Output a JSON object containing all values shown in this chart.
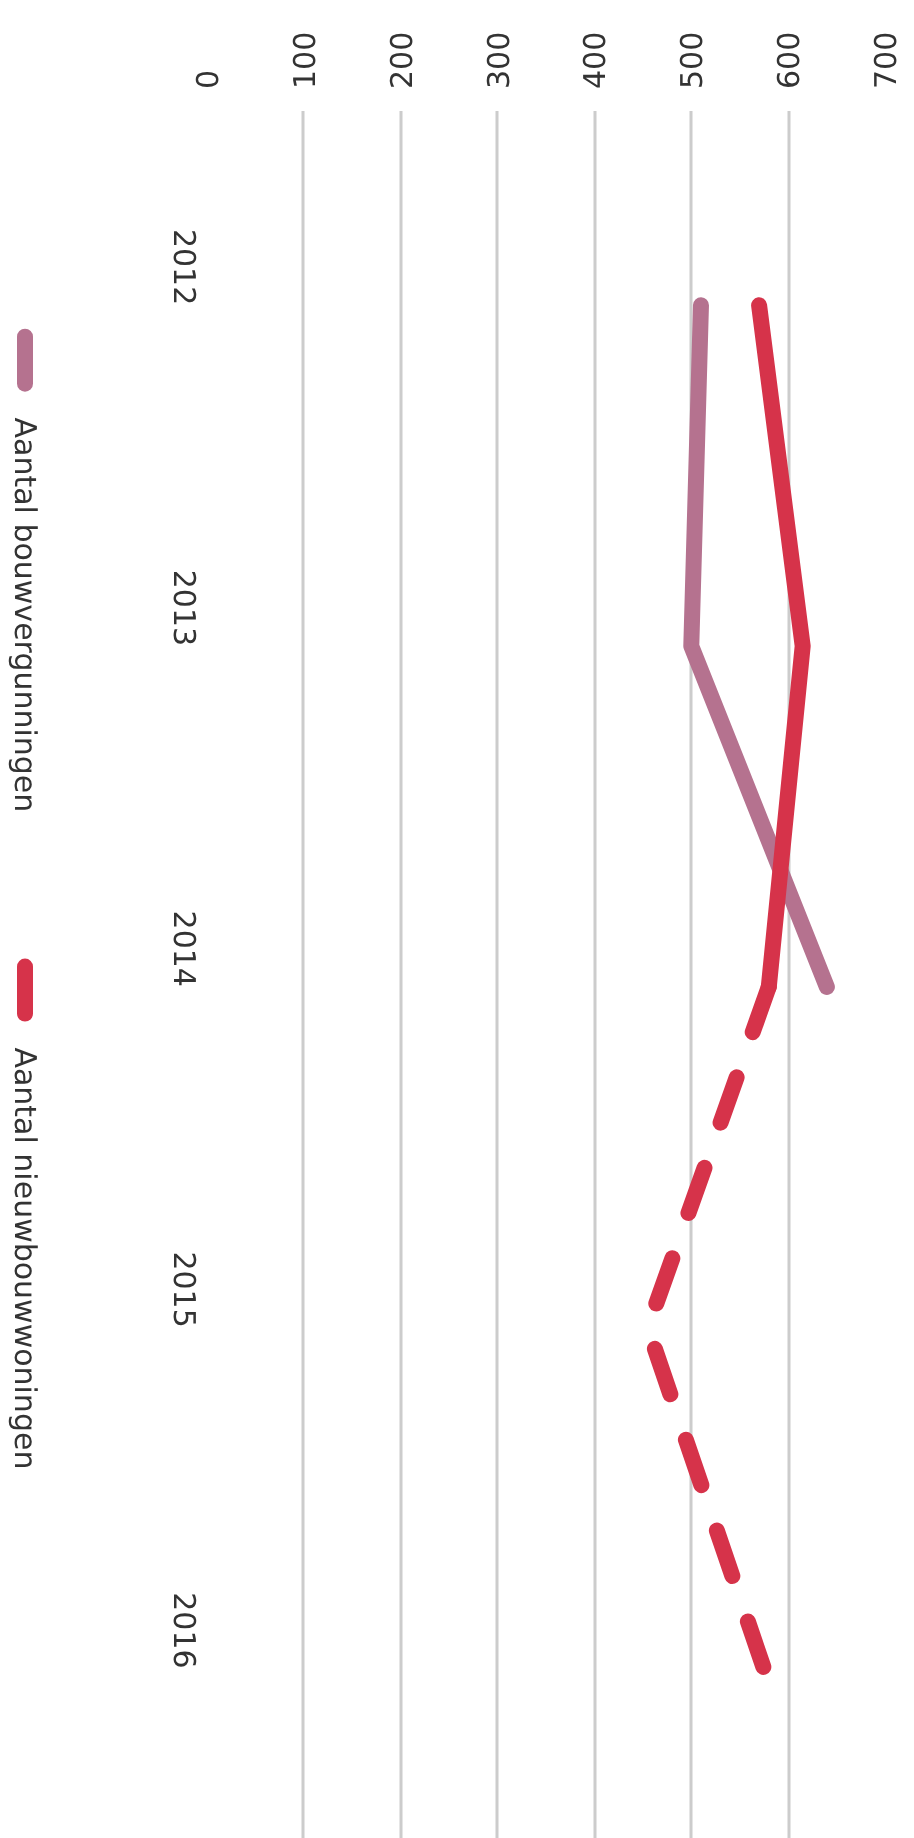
{
  "chart_data": {
    "type": "line",
    "orientation": "horizontal",
    "categories": [
      "2012",
      "2013",
      "2014",
      "2015",
      "2016"
    ],
    "series": [
      {
        "name": "Aantal bouwvergunningen",
        "color": "#b5728f",
        "values": [
          510,
          500,
          640,
          null,
          null
        ]
      },
      {
        "name": "Aantal nieuwbouwwoningen",
        "color": "#d6334a",
        "values": [
          570,
          615,
          580,
          null,
          null
        ]
      },
      {
        "color": "#d6334a",
        "values": [
          null,
          null,
          580,
          455,
          575
        ],
        "line_style": "dashed"
      }
    ],
    "xlim": [
      0,
      700
    ],
    "xticks": [
      0,
      100,
      200,
      300,
      400,
      500,
      600,
      700
    ],
    "grid": "x",
    "legend": "left",
    "line_style": "solid",
    "marker": "none"
  }
}
